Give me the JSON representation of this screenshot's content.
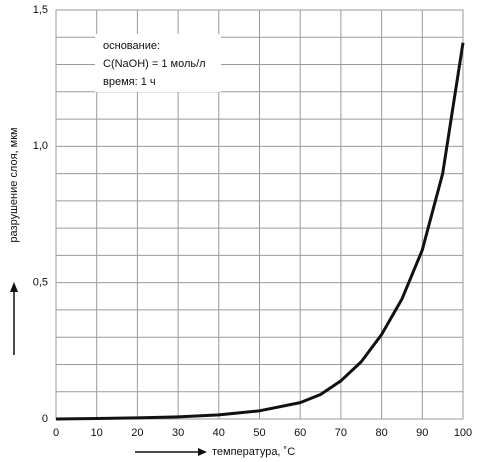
{
  "chart_data": {
    "type": "line",
    "x": [
      0,
      10,
      20,
      30,
      40,
      50,
      60,
      65,
      70,
      75,
      80,
      85,
      90,
      95,
      100
    ],
    "series": [
      {
        "color": "#111111",
        "values": [
          0.0,
          0.002,
          0.004,
          0.008,
          0.015,
          0.03,
          0.06,
          0.09,
          0.14,
          0.21,
          0.31,
          0.44,
          0.62,
          0.9,
          1.38
        ]
      }
    ],
    "xlim": [
      0,
      100
    ],
    "xticks": [
      0,
      10,
      20,
      30,
      40,
      50,
      60,
      70,
      80,
      90,
      100
    ],
    "ylim": [
      0,
      1.5
    ],
    "yticks": [
      0,
      {
        "value": 0.5,
        "label": "0,5"
      },
      {
        "value": 1.0,
        "label": "1,0"
      },
      {
        "value": 1.5,
        "label": "1,5"
      }
    ],
    "yminorticks": [
      0.1,
      0.2,
      0.3,
      0.4,
      0.6,
      0.7,
      0.8,
      0.9,
      1.1,
      1.2,
      1.3,
      1.4
    ],
    "grid": true,
    "xlabel": "температура, ˚C",
    "ylabel": "разрушение слоя, мкм",
    "annotations": [
      "основание:",
      "C(NaOH) = 1 моль/л",
      "время: 1 ч"
    ]
  }
}
